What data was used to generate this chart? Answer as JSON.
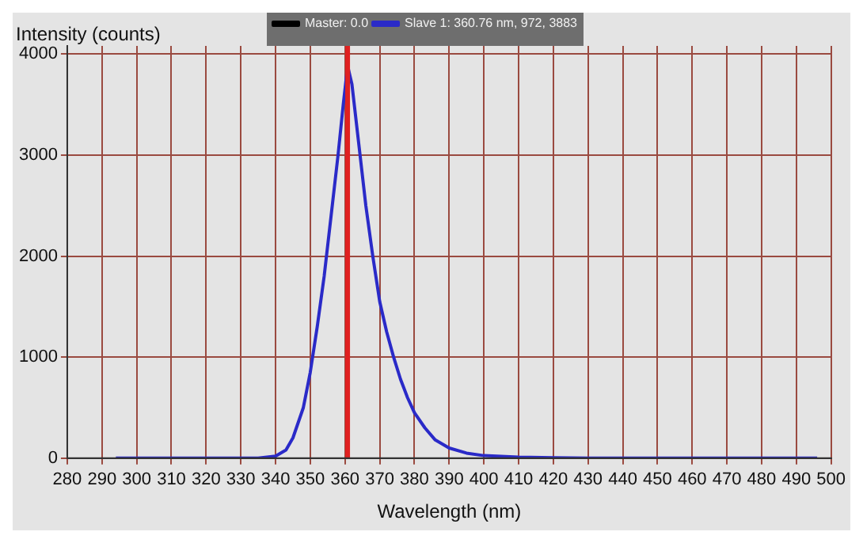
{
  "chart_data": {
    "type": "line",
    "xlabel": "Wavelength (nm)",
    "ylabel": "Intensity (counts)",
    "xlim": [
      280,
      500
    ],
    "xticks": [
      280,
      290,
      300,
      310,
      320,
      330,
      340,
      350,
      360,
      370,
      380,
      390,
      400,
      410,
      420,
      430,
      440,
      450,
      460,
      470,
      480,
      490,
      500
    ],
    "ylim": [
      0,
      4080
    ],
    "yticks": [
      0,
      1000,
      2000,
      3000,
      4000
    ],
    "grid": true,
    "legend": "top",
    "marker": "none",
    "line_style": "solid",
    "series": [
      {
        "name": "Master: 0.0",
        "color": "#000000"
      },
      {
        "name": "Slave 1: 360.76 nm, 972, 3883",
        "color": "#2a2ac8",
        "x": [
          294,
          320,
          335,
          340,
          343,
          345,
          348,
          350,
          352,
          354,
          356,
          358,
          359.5,
          360.76,
          362,
          364,
          366,
          368,
          370,
          372,
          374,
          376,
          378,
          380,
          383,
          386,
          390,
          395,
          400,
          410,
          420,
          430,
          460,
          496
        ],
        "values": [
          0,
          0,
          0,
          20,
          80,
          200,
          500,
          850,
          1300,
          1800,
          2400,
          3000,
          3500,
          3883,
          3700,
          3100,
          2500,
          2000,
          1550,
          1250,
          1000,
          780,
          600,
          450,
          300,
          180,
          100,
          50,
          25,
          10,
          5,
          0,
          0,
          0
        ]
      }
    ],
    "ref_lines": [
      {
        "axis": "x",
        "value": 360.76,
        "color": "#e02020"
      }
    ]
  }
}
